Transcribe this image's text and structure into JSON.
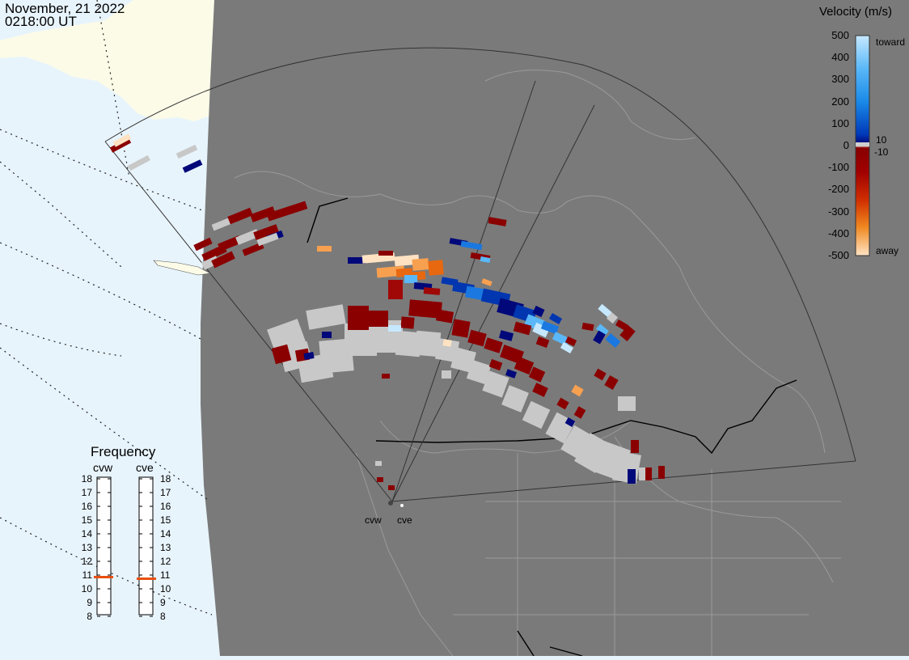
{
  "header": {
    "date": "November, 21 2022",
    "time": "0218:00 UT"
  },
  "legend": {
    "title": "Velocity (m/s)",
    "ticks": [
      "500",
      "400",
      "300",
      "200",
      "100",
      "0",
      "-100",
      "-200",
      "-300",
      "-400",
      "-500"
    ],
    "toward_label": "toward",
    "away_label": "away",
    "pos_threshold": "10",
    "neg_threshold": "-10",
    "colors": {
      "toward_light": "#c6e8ff",
      "toward_mid": "#1a8ae8",
      "toward_dark": "#00087a",
      "zero": "#ffffff",
      "away_dark": "#880000",
      "away_mid": "#e86010",
      "away_light": "#ffe4c4"
    }
  },
  "frequency": {
    "title": "Frequency",
    "radars": [
      {
        "name": "cvw",
        "value": 11
      },
      {
        "name": "cve",
        "value": 11
      }
    ],
    "scale": [
      "18",
      "17",
      "16",
      "15",
      "14",
      "13",
      "12",
      "11",
      "10",
      "9",
      "8"
    ]
  },
  "map": {
    "sites": [
      {
        "name": "cvw"
      },
      {
        "name": "cve"
      }
    ],
    "colors": {
      "ocean": "#e8f4fc",
      "land_alaska": "#fbfbe8",
      "night": "#7a7a7a",
      "ground_scatter": "#c8c8c8"
    }
  }
}
